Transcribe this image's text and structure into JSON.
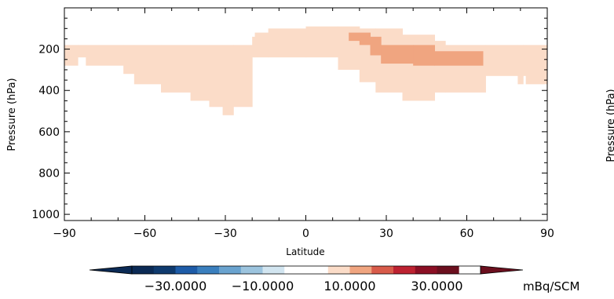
{
  "chart_data": {
    "type": "heatmap",
    "xlabel": "Latitude",
    "ylabel": "Pressure (hPa)",
    "xlim": [
      -90,
      90
    ],
    "ylim": [
      1030,
      0
    ],
    "y_axis_inverted": true,
    "x_ticks": [
      -90,
      -60,
      -30,
      0,
      30,
      60,
      90
    ],
    "x_tick_labels": [
      "−90",
      "−60",
      "−30",
      "0",
      "30",
      "60",
      "90"
    ],
    "y_ticks": [
      200,
      400,
      600,
      800,
      1000
    ],
    "y_tick_labels": [
      "200",
      "400",
      "600",
      "800",
      "1000"
    ],
    "fill_cells": [
      {
        "level": 1,
        "lat": [
          -90,
          -85
        ],
        "p": [
          180,
          280
        ]
      },
      {
        "level": 1,
        "lat": [
          -85,
          -82
        ],
        "p": [
          180,
          240
        ]
      },
      {
        "level": 1,
        "lat": [
          -82,
          -68
        ],
        "p": [
          180,
          280
        ]
      },
      {
        "level": 1,
        "lat": [
          -68,
          -64
        ],
        "p": [
          180,
          320
        ]
      },
      {
        "level": 1,
        "lat": [
          -64,
          -54
        ],
        "p": [
          180,
          370
        ]
      },
      {
        "level": 1,
        "lat": [
          -54,
          -43
        ],
        "p": [
          180,
          410
        ]
      },
      {
        "level": 1,
        "lat": [
          -43,
          -36
        ],
        "p": [
          180,
          450
        ]
      },
      {
        "level": 1,
        "lat": [
          -36,
          -31
        ],
        "p": [
          180,
          480
        ]
      },
      {
        "level": 1,
        "lat": [
          -31,
          -27
        ],
        "p": [
          180,
          520
        ]
      },
      {
        "level": 1,
        "lat": [
          -27,
          -20
        ],
        "p": [
          180,
          480
        ]
      },
      {
        "level": 1,
        "lat": [
          -20,
          -19
        ],
        "p": [
          140,
          240
        ]
      },
      {
        "level": 1,
        "lat": [
          -19,
          -14
        ],
        "p": [
          120,
          240
        ]
      },
      {
        "level": 1,
        "lat": [
          -14,
          0
        ],
        "p": [
          100,
          240
        ]
      },
      {
        "level": 1,
        "lat": [
          0,
          12
        ],
        "p": [
          90,
          240
        ]
      },
      {
        "level": 1,
        "lat": [
          12,
          20
        ],
        "p": [
          90,
          300
        ]
      },
      {
        "level": 1,
        "lat": [
          20,
          26
        ],
        "p": [
          100,
          360
        ]
      },
      {
        "level": 1,
        "lat": [
          26,
          36
        ],
        "p": [
          100,
          410
        ]
      },
      {
        "level": 1,
        "lat": [
          36,
          48
        ],
        "p": [
          130,
          450
        ]
      },
      {
        "level": 1,
        "lat": [
          48,
          52
        ],
        "p": [
          160,
          410
        ]
      },
      {
        "level": 1,
        "lat": [
          52,
          67
        ],
        "p": [
          180,
          410
        ]
      },
      {
        "level": 1,
        "lat": [
          67,
          79
        ],
        "p": [
          180,
          330
        ]
      },
      {
        "level": 1,
        "lat": [
          79,
          81
        ],
        "p": [
          180,
          370
        ]
      },
      {
        "level": 1,
        "lat": [
          81,
          82
        ],
        "p": [
          180,
          330
        ]
      },
      {
        "level": 1,
        "lat": [
          82,
          90
        ],
        "p": [
          180,
          370
        ]
      },
      {
        "level": 2,
        "lat": [
          16,
          20
        ],
        "p": [
          120,
          160
        ]
      },
      {
        "level": 2,
        "lat": [
          20,
          24
        ],
        "p": [
          120,
          180
        ]
      },
      {
        "level": 2,
        "lat": [
          24,
          28
        ],
        "p": [
          140,
          230
        ]
      },
      {
        "level": 2,
        "lat": [
          28,
          40
        ],
        "p": [
          180,
          270
        ]
      },
      {
        "level": 2,
        "lat": [
          40,
          48
        ],
        "p": [
          180,
          280
        ]
      },
      {
        "level": 2,
        "lat": [
          48,
          66
        ],
        "p": [
          210,
          280
        ]
      }
    ],
    "colorbar": {
      "unit": "mBq/SCM",
      "tick_labels": [
        "−30.0000",
        "−10.0000",
        "10.0000",
        "30.0000"
      ],
      "tick_values": [
        -30,
        -10,
        10,
        30
      ],
      "range": [
        -40,
        40
      ],
      "extend": "both",
      "lower_extend_color": "#0b2a55",
      "upper_extend_color": "#6b0f1e",
      "bins": [
        {
          "from": -40,
          "to": -35,
          "color": "#0b2a55"
        },
        {
          "from": -35,
          "to": -30,
          "color": "#0f3a6e"
        },
        {
          "from": -30,
          "to": -25,
          "color": "#1e5ca8"
        },
        {
          "from": -25,
          "to": -20,
          "color": "#3a7fbe"
        },
        {
          "from": -20,
          "to": -15,
          "color": "#6aa3cf"
        },
        {
          "from": -15,
          "to": -10,
          "color": "#9cc4de"
        },
        {
          "from": -10,
          "to": -5,
          "color": "#d2e5f0"
        },
        {
          "from": -5,
          "to": 5,
          "color": "#ffffff"
        },
        {
          "from": 5,
          "to": 10,
          "color": "#fbdcc8"
        },
        {
          "from": 10,
          "to": 15,
          "color": "#f0a580"
        },
        {
          "from": 15,
          "to": 20,
          "color": "#d85b4a"
        },
        {
          "from": 20,
          "to": 25,
          "color": "#bd2231"
        },
        {
          "from": 25,
          "to": 30,
          "color": "#8b0f24"
        },
        {
          "from": 30,
          "to": 35,
          "color": "#6b0f1e"
        }
      ]
    },
    "level_colors": {
      "1": "#fbdcc8",
      "2": "#f0a580"
    }
  },
  "second_panel_ylabel_fragment": "Pressure (hPa)"
}
